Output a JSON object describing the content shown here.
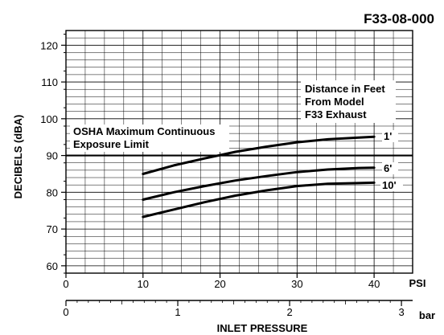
{
  "chart_data": {
    "type": "line",
    "title": "F33-08-000",
    "ylabel": "DECIBELS (dBA)",
    "xlabel": "INLET PRESSURE",
    "x_unit_psi": "PSI",
    "x_unit_bar": "bar",
    "xlim_psi": [
      0,
      45
    ],
    "xlim_bar": [
      0,
      3.1
    ],
    "ylim": [
      58,
      124
    ],
    "y_ticks": [
      60,
      70,
      80,
      90,
      100,
      110,
      120
    ],
    "x_ticks_psi": [
      0,
      10,
      20,
      30,
      40
    ],
    "x_ticks_bar": [
      0,
      1,
      2,
      3
    ],
    "grid": true,
    "legend_title": [
      "Distance in Feet",
      "From Model",
      "F33 Exhaust"
    ],
    "reference_line": {
      "value": 90,
      "label": [
        "OSHA Maximum Continuous",
        "Exposure Limit"
      ]
    },
    "series": [
      {
        "name": "1'",
        "x": [
          10,
          14,
          18,
          22,
          26,
          30,
          34,
          38,
          40
        ],
        "y": [
          85.0,
          87.3,
          89.2,
          91.0,
          92.4,
          93.6,
          94.4,
          94.9,
          95.1
        ]
      },
      {
        "name": "6'",
        "x": [
          10,
          14,
          18,
          22,
          26,
          30,
          34,
          38,
          40
        ],
        "y": [
          78.0,
          80.0,
          81.7,
          83.2,
          84.4,
          85.5,
          86.2,
          86.6,
          86.7
        ]
      },
      {
        "name": "10'",
        "x": [
          10,
          14,
          18,
          22,
          26,
          30,
          34,
          38,
          40
        ],
        "y": [
          73.3,
          75.3,
          77.3,
          79.1,
          80.5,
          81.7,
          82.3,
          82.5,
          82.6
        ]
      }
    ]
  }
}
